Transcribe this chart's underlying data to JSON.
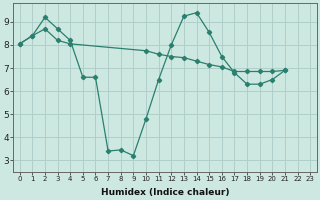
{
  "line1_x": [
    0,
    1,
    2,
    3,
    4,
    5,
    6,
    7,
    8,
    9,
    10,
    11,
    12,
    13,
    14,
    15,
    16,
    17,
    18,
    19,
    20,
    21
  ],
  "line1_y": [
    8.05,
    8.4,
    9.2,
    8.7,
    8.2,
    6.6,
    6.6,
    3.4,
    3.45,
    3.2,
    4.8,
    6.5,
    8.0,
    9.25,
    9.4,
    8.55,
    7.5,
    6.8,
    6.3,
    6.3,
    6.5,
    6.9
  ],
  "line2_x": [
    0,
    1,
    2,
    3,
    4,
    10,
    11,
    12,
    13,
    14,
    15,
    16,
    17,
    18,
    19,
    20,
    21
  ],
  "line2_y": [
    8.05,
    8.4,
    8.7,
    8.2,
    8.05,
    7.75,
    7.6,
    7.5,
    7.45,
    7.3,
    7.15,
    7.05,
    6.85,
    6.85,
    6.85,
    6.85,
    6.9
  ],
  "color": "#2a7f6f",
  "bg_color": "#cde8e0",
  "grid_color": "#b0cfca",
  "xlabel": "Humidex (Indice chaleur)",
  "xticks": [
    0,
    1,
    2,
    3,
    4,
    5,
    6,
    7,
    8,
    9,
    10,
    11,
    12,
    13,
    14,
    15,
    16,
    17,
    18,
    19,
    20,
    21,
    22,
    23
  ],
  "yticks": [
    3,
    4,
    5,
    6,
    7,
    8,
    9
  ],
  "ylim": [
    2.5,
    9.8
  ],
  "xlim": [
    -0.5,
    23.5
  ]
}
